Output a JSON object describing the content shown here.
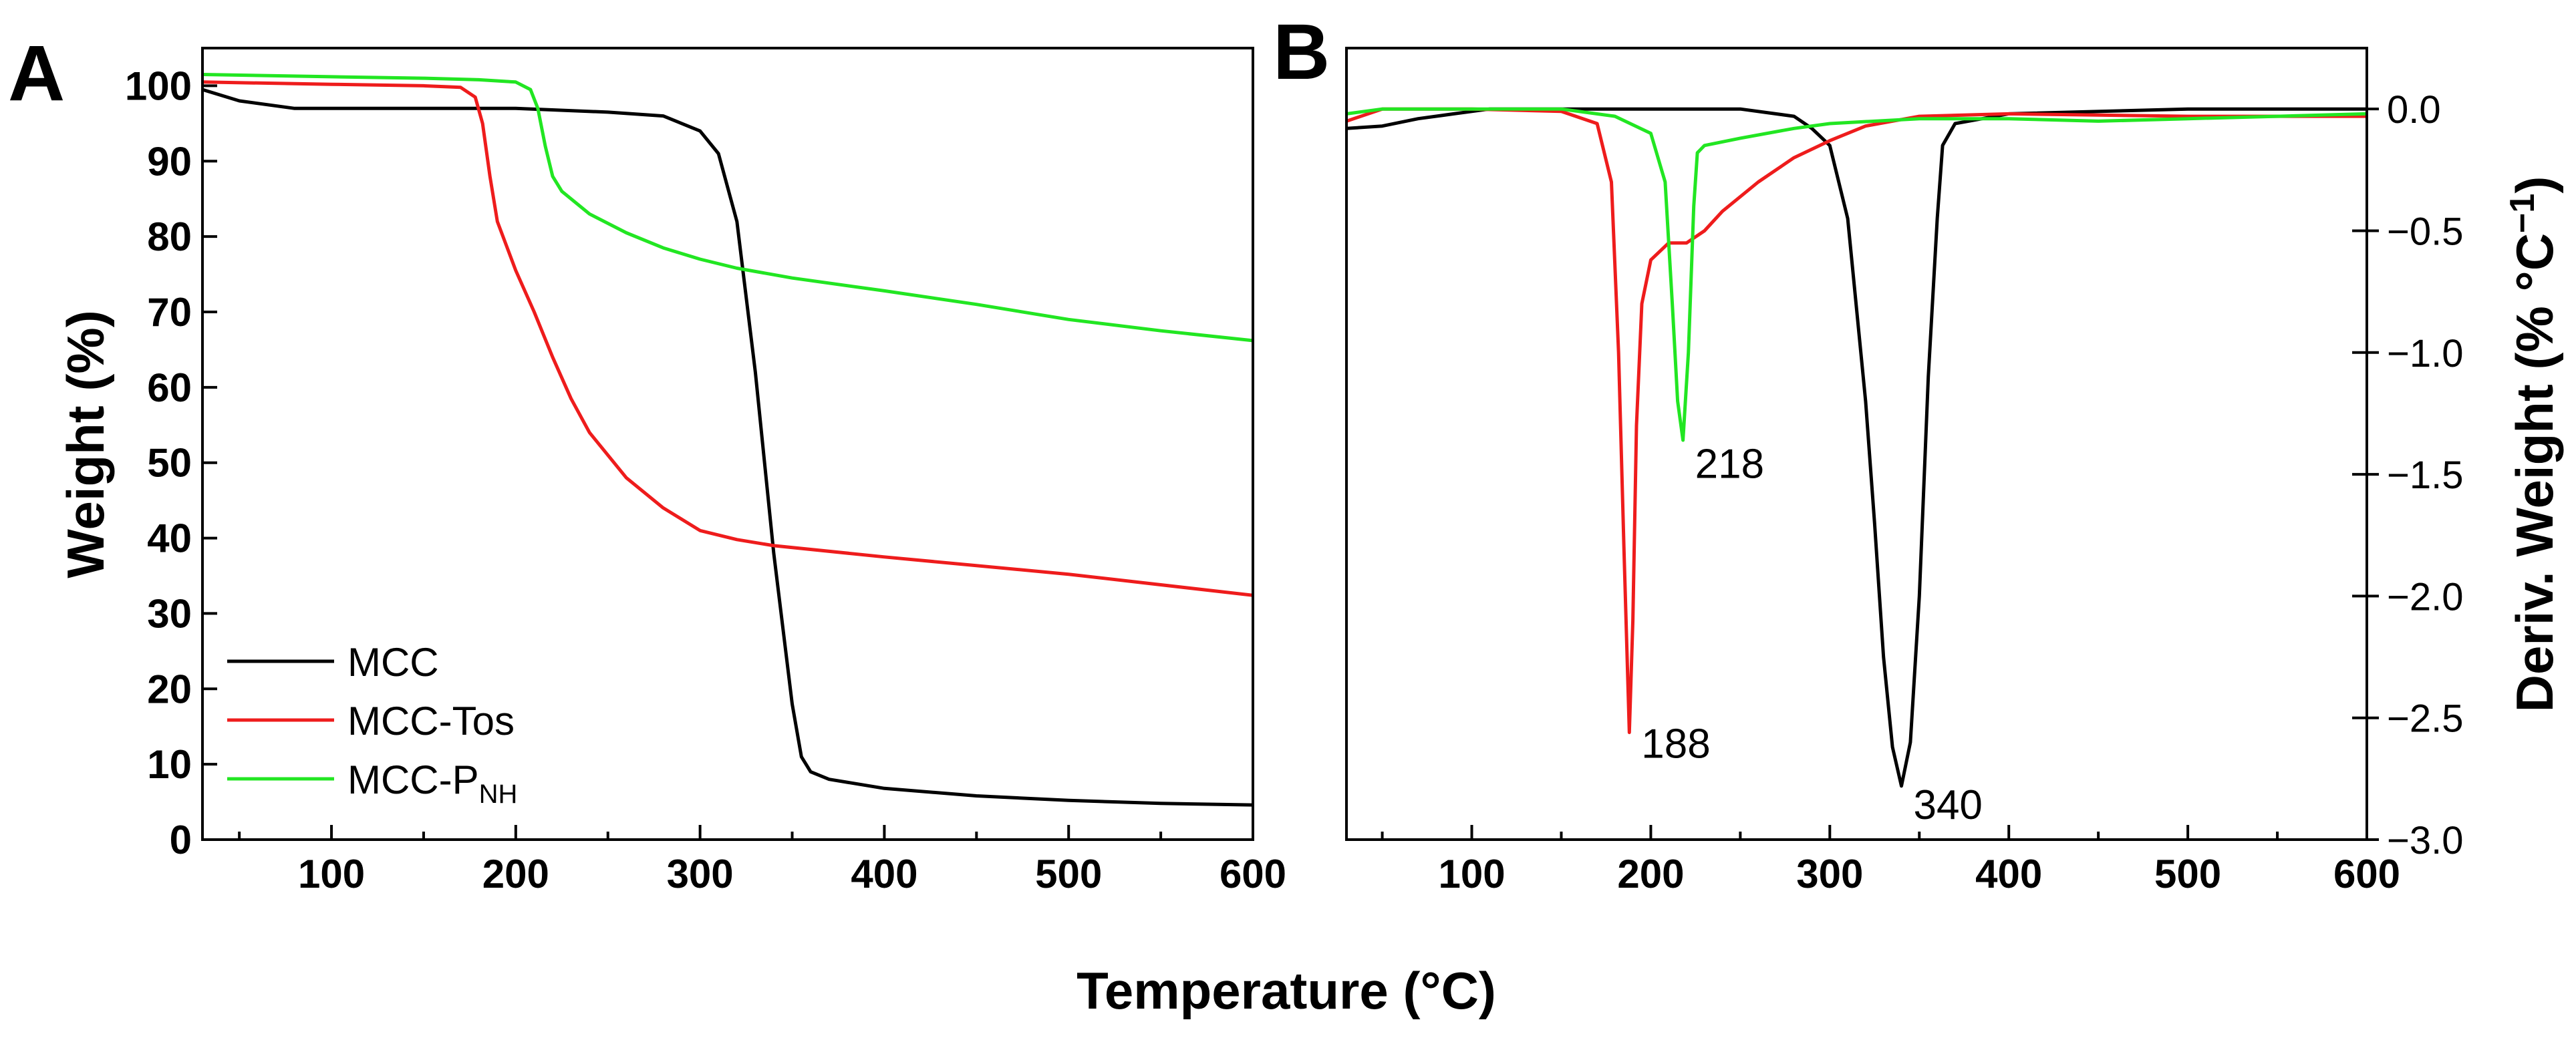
{
  "figure": {
    "x_axis_title": "Temperature (°C)",
    "colors": {
      "MCC": "#000000",
      "MCC-Tos": "#ee1c1c",
      "MCC-PNH": "#22e622"
    }
  },
  "chart_data": [
    {
      "panel": "A",
      "type": "line",
      "title": "",
      "xlabel": "Temperature (°C)",
      "ylabel": "Weight (%)",
      "xlim": [
        30,
        600
      ],
      "ylim": [
        0,
        105
      ],
      "xticks": [
        100,
        200,
        300,
        400,
        500,
        600
      ],
      "yticks": [
        0,
        10,
        20,
        30,
        40,
        50,
        60,
        70,
        80,
        90,
        100
      ],
      "legend": {
        "position": "bottom-left",
        "entries": [
          {
            "label": "MCC",
            "series": "MCC"
          },
          {
            "label": "MCC-Tos",
            "series": "MCC-Tos"
          },
          {
            "label_main": "MCC-P",
            "label_sub": "NH",
            "series": "MCC-PNH"
          }
        ]
      },
      "series": [
        {
          "name": "MCC",
          "color": "#000000",
          "x": [
            30,
            50,
            80,
            100,
            150,
            200,
            250,
            280,
            300,
            310,
            320,
            330,
            340,
            345,
            350,
            355,
            360,
            370,
            400,
            450,
            500,
            550,
            600
          ],
          "y": [
            99.5,
            98,
            97,
            97,
            97,
            97,
            96.5,
            96,
            94,
            91,
            82,
            62,
            38,
            28,
            18,
            11,
            9,
            8,
            6.8,
            5.8,
            5.2,
            4.8,
            4.6
          ]
        },
        {
          "name": "MCC-Tos",
          "color": "#ee1c1c",
          "x": [
            30,
            100,
            150,
            170,
            178,
            182,
            186,
            190,
            200,
            210,
            220,
            230,
            240,
            260,
            280,
            300,
            320,
            340,
            400,
            500,
            600
          ],
          "y": [
            100.5,
            100.2,
            100,
            99.8,
            98.5,
            95,
            88,
            82,
            75.5,
            70,
            64,
            58.5,
            54,
            48,
            44,
            41,
            39.8,
            39,
            37.5,
            35.2,
            32.4
          ]
        },
        {
          "name": "MCC-PNH",
          "color": "#22e622",
          "x": [
            30,
            100,
            150,
            180,
            200,
            208,
            212,
            216,
            220,
            225,
            240,
            260,
            280,
            300,
            320,
            350,
            400,
            450,
            500,
            550,
            600
          ],
          "y": [
            101.5,
            101.2,
            101,
            100.8,
            100.5,
            99.5,
            97,
            92,
            88,
            86,
            83,
            80.5,
            78.5,
            77,
            75.8,
            74.5,
            72.8,
            71,
            69,
            67.5,
            66.2
          ]
        }
      ]
    },
    {
      "panel": "B",
      "type": "line",
      "title": "",
      "xlabel": "Temperature (°C)",
      "ylabel": "Deriv. Weight (% °C",
      "ylabel_sup": "−1",
      "ylabel_close": ")",
      "xlim": [
        30,
        600
      ],
      "ylim": [
        -3.0,
        0.25
      ],
      "xticks": [
        100,
        200,
        300,
        400,
        500,
        600
      ],
      "yticks": [
        0.0,
        -0.5,
        -1.0,
        -1.5,
        -2.0,
        -2.5,
        -3.0
      ],
      "ytick_labels": [
        "0.0",
        "−0.5",
        "−1.0",
        "−1.5",
        "−2.0",
        "−2.5",
        "−3.0"
      ],
      "annotations": [
        {
          "text": "188",
          "x": 188,
          "y": -2.5
        },
        {
          "text": "218",
          "x": 218,
          "y": -1.35
        },
        {
          "text": "340",
          "x": 340,
          "y": -2.75
        }
      ],
      "series": [
        {
          "name": "MCC",
          "color": "#000000",
          "x": [
            30,
            50,
            70,
            90,
            110,
            150,
            200,
            250,
            280,
            290,
            300,
            310,
            320,
            325,
            330,
            335,
            340,
            345,
            350,
            355,
            360,
            363,
            370,
            400,
            500,
            600
          ],
          "y": [
            -0.08,
            -0.07,
            -0.04,
            -0.02,
            0.0,
            0.0,
            0.0,
            0.0,
            -0.03,
            -0.08,
            -0.15,
            -0.45,
            -1.2,
            -1.7,
            -2.25,
            -2.62,
            -2.78,
            -2.6,
            -2.0,
            -1.1,
            -0.45,
            -0.15,
            -0.06,
            -0.02,
            0.0,
            0.0
          ]
        },
        {
          "name": "MCC-Tos",
          "color": "#ee1c1c",
          "x": [
            30,
            50,
            100,
            150,
            170,
            178,
            182,
            185,
            188,
            190,
            192,
            195,
            200,
            210,
            220,
            230,
            240,
            260,
            280,
            300,
            320,
            350,
            400,
            500,
            600
          ],
          "y": [
            -0.05,
            0.0,
            0.0,
            -0.01,
            -0.06,
            -0.3,
            -1.0,
            -1.8,
            -2.56,
            -2.1,
            -1.3,
            -0.8,
            -0.62,
            -0.55,
            -0.55,
            -0.5,
            -0.42,
            -0.3,
            -0.2,
            -0.13,
            -0.07,
            -0.03,
            -0.02,
            -0.03,
            -0.03
          ]
        },
        {
          "name": "MCC-PNH",
          "color": "#22e622",
          "x": [
            30,
            50,
            100,
            150,
            180,
            200,
            208,
            212,
            215,
            218,
            221,
            224,
            226,
            230,
            250,
            280,
            300,
            350,
            400,
            450,
            500,
            550,
            600
          ],
          "y": [
            -0.02,
            0.0,
            0.0,
            0.0,
            -0.03,
            -0.1,
            -0.3,
            -0.8,
            -1.2,
            -1.36,
            -1.0,
            -0.4,
            -0.18,
            -0.15,
            -0.12,
            -0.08,
            -0.06,
            -0.04,
            -0.04,
            -0.05,
            -0.04,
            -0.03,
            -0.02
          ]
        }
      ]
    }
  ]
}
